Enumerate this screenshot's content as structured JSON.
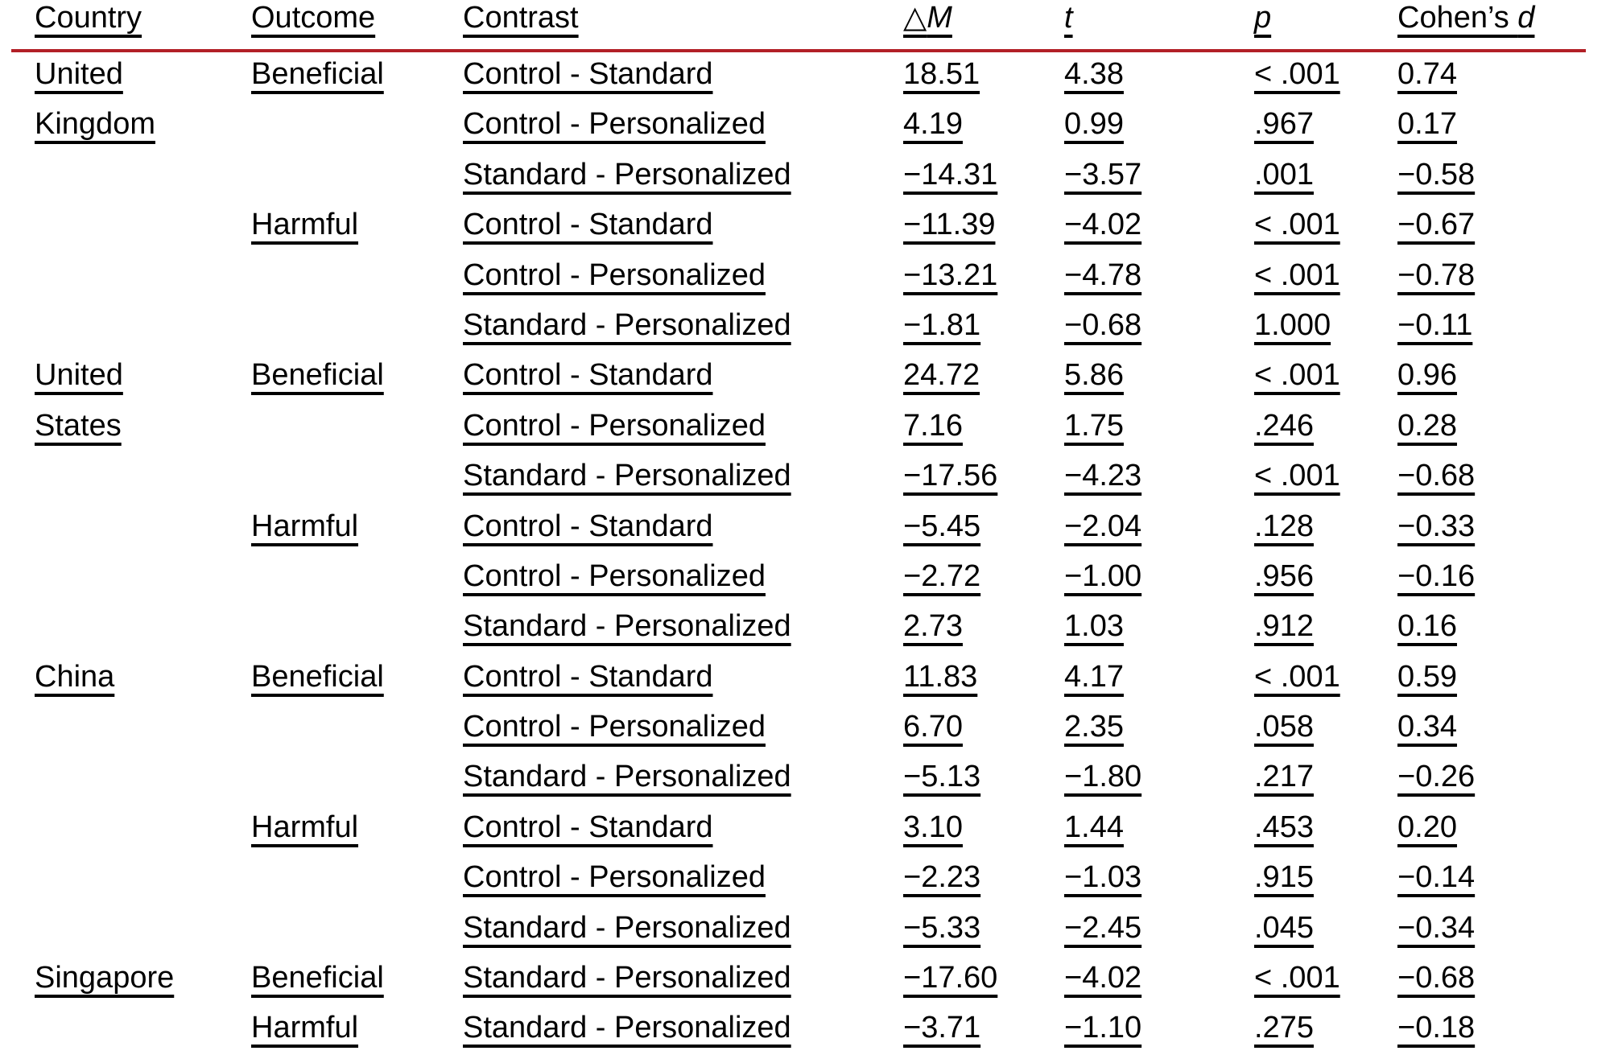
{
  "page": {
    "background": "#ffffff",
    "text_color": "#000000",
    "rule_color": "#b22026"
  },
  "table": {
    "headers": {
      "country": "Country",
      "outcome": "Outcome",
      "contrast": "Contrast",
      "delta_symbol": "△",
      "delta_letter": "M",
      "t": "t",
      "p": "p",
      "cohens": "Cohen’s ",
      "cohens_letter": "d"
    },
    "rows": [
      {
        "country": "United",
        "outcome": "Beneficial",
        "contrast": "Control - Standard",
        "dm": "18.51",
        "t": "4.38",
        "p": "< .001",
        "d": "0.74"
      },
      {
        "country": "Kingdom",
        "outcome": "",
        "contrast": "Control - Personalized",
        "dm": "4.19",
        "t": "0.99",
        "p": ".967",
        "d": "0.17"
      },
      {
        "country": "",
        "outcome": "",
        "contrast": "Standard - Personalized",
        "dm": "−14.31",
        "t": "−3.57",
        "p": ".001",
        "d": "−0.58"
      },
      {
        "country": "",
        "outcome": "Harmful",
        "contrast": "Control - Standard",
        "dm": "−11.39",
        "t": "−4.02",
        "p": "< .001",
        "d": "−0.67"
      },
      {
        "country": "",
        "outcome": "",
        "contrast": "Control - Personalized",
        "dm": "−13.21",
        "t": "−4.78",
        "p": "< .001",
        "d": "−0.78"
      },
      {
        "country": "",
        "outcome": "",
        "contrast": "Standard - Personalized",
        "dm": "−1.81",
        "t": "−0.68",
        "p": "1.000",
        "d": "−0.11"
      },
      {
        "country": "United",
        "outcome": "Beneficial",
        "contrast": "Control - Standard",
        "dm": "24.72",
        "t": "5.86",
        "p": "< .001",
        "d": "0.96"
      },
      {
        "country": "States",
        "outcome": "",
        "contrast": "Control - Personalized",
        "dm": "7.16",
        "t": "1.75",
        "p": ".246",
        "d": "0.28"
      },
      {
        "country": "",
        "outcome": "",
        "contrast": "Standard - Personalized",
        "dm": "−17.56",
        "t": "−4.23",
        "p": "< .001",
        "d": "−0.68"
      },
      {
        "country": "",
        "outcome": "Harmful",
        "contrast": "Control - Standard",
        "dm": "−5.45",
        "t": "−2.04",
        "p": ".128",
        "d": "−0.33"
      },
      {
        "country": "",
        "outcome": "",
        "contrast": "Control - Personalized",
        "dm": "−2.72",
        "t": "−1.00",
        "p": ".956",
        "d": "−0.16"
      },
      {
        "country": "",
        "outcome": "",
        "contrast": "Standard - Personalized",
        "dm": "2.73",
        "t": "1.03",
        "p": ".912",
        "d": "0.16"
      },
      {
        "country": "China",
        "outcome": "Beneficial",
        "contrast": "Control - Standard",
        "dm": "11.83",
        "t": "4.17",
        "p": "< .001",
        "d": "0.59"
      },
      {
        "country": "",
        "outcome": "",
        "contrast": "Control - Personalized",
        "dm": "6.70",
        "t": "2.35",
        "p": ".058",
        "d": "0.34"
      },
      {
        "country": "",
        "outcome": "",
        "contrast": "Standard - Personalized",
        "dm": "−5.13",
        "t": "−1.80",
        "p": ".217",
        "d": "−0.26"
      },
      {
        "country": "",
        "outcome": "Harmful",
        "contrast": "Control - Standard",
        "dm": "3.10",
        "t": "1.44",
        "p": ".453",
        "d": "0.20"
      },
      {
        "country": "",
        "outcome": "",
        "contrast": "Control - Personalized",
        "dm": "−2.23",
        "t": "−1.03",
        "p": ".915",
        "d": "−0.14"
      },
      {
        "country": "",
        "outcome": "",
        "contrast": "Standard - Personalized",
        "dm": "−5.33",
        "t": "−2.45",
        "p": ".045",
        "d": "−0.34"
      },
      {
        "country": "Singapore",
        "outcome": "Beneficial",
        "contrast": "Standard - Personalized",
        "dm": "−17.60",
        "t": "−4.02",
        "p": "< .001",
        "d": "−0.68"
      },
      {
        "country": "",
        "outcome": "Harmful",
        "contrast": "Standard - Personalized",
        "dm": "−3.71",
        "t": "−1.10",
        "p": ".275",
        "d": "−0.18"
      }
    ]
  }
}
